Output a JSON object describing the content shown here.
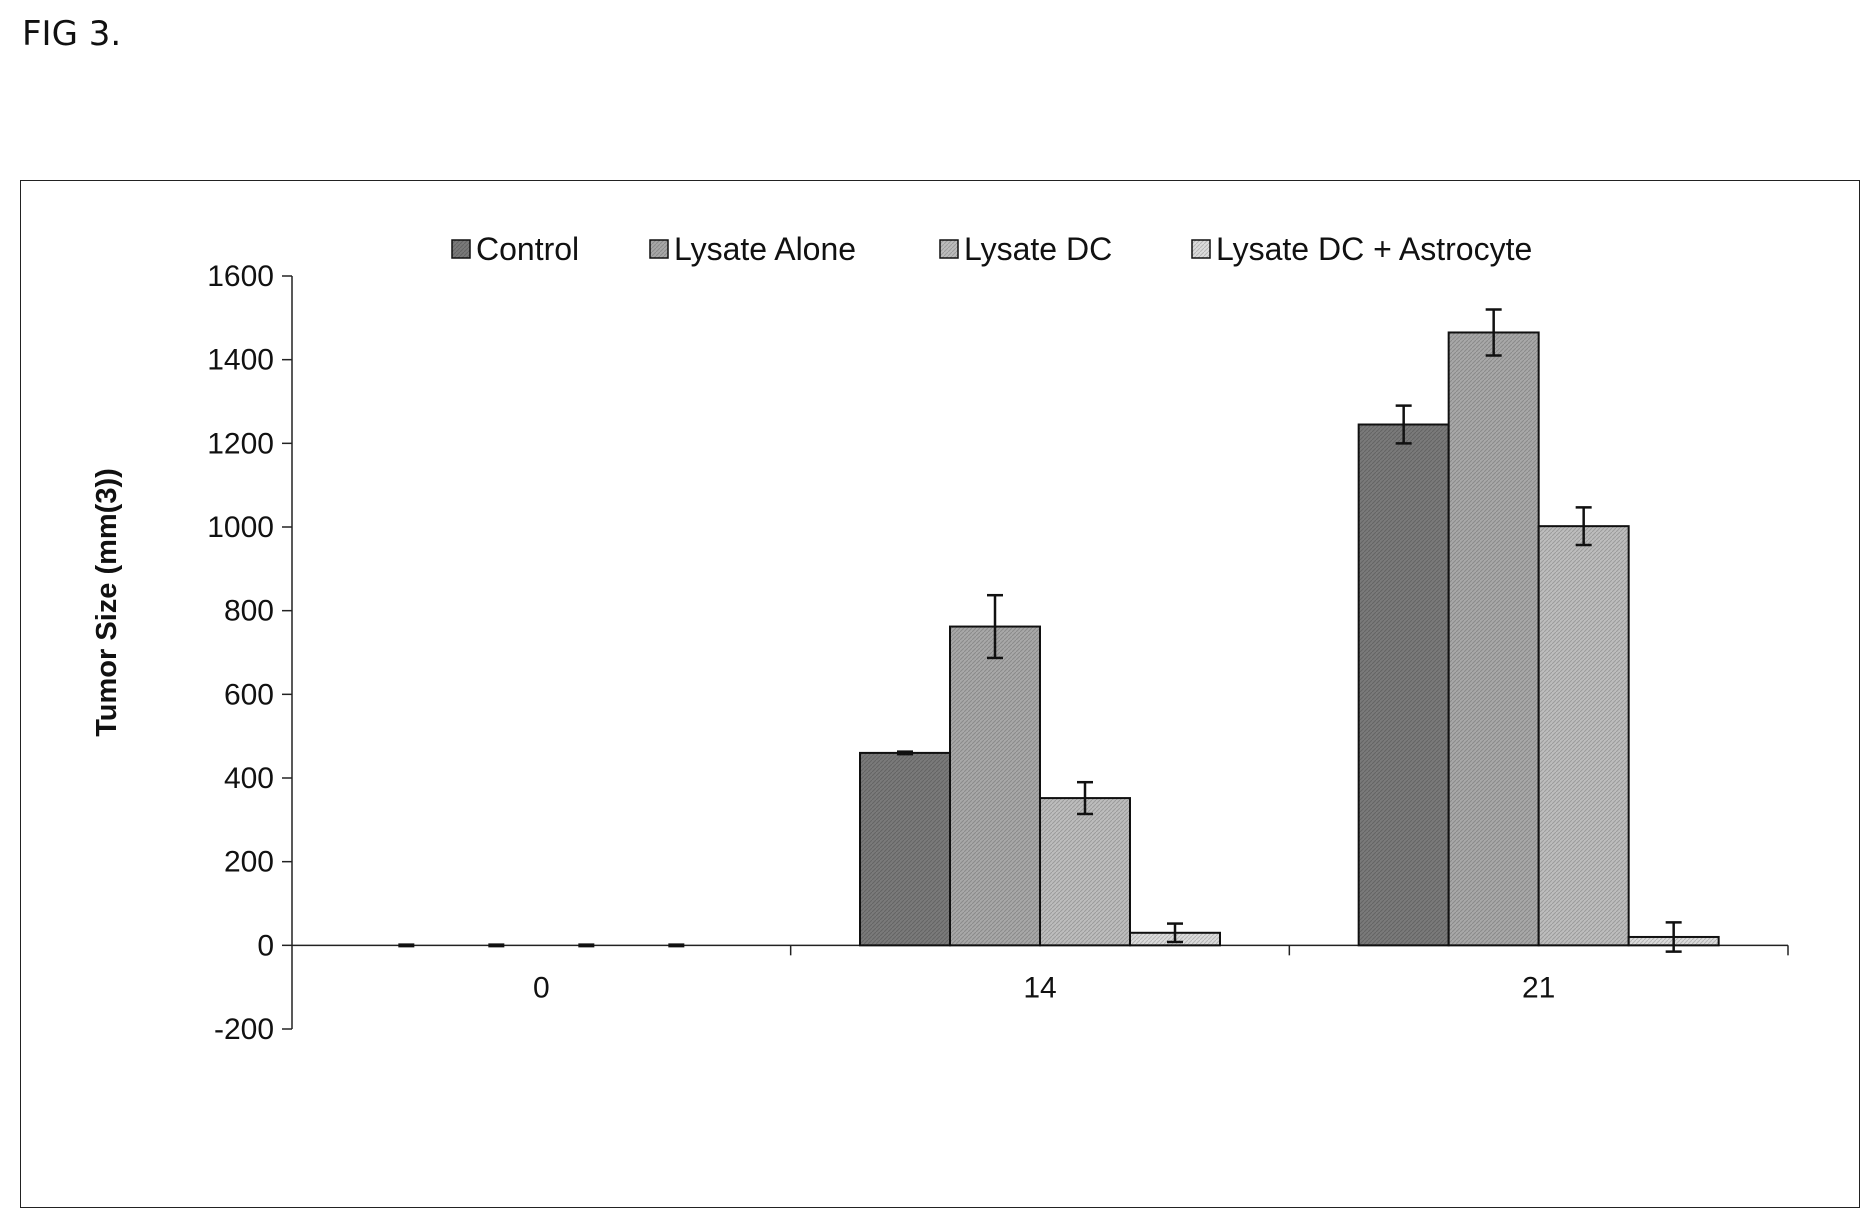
{
  "figure_label": "FIG 3.",
  "chart_data": {
    "type": "bar",
    "categories": [
      "0",
      "14",
      "21"
    ],
    "series": [
      {
        "name": "Control",
        "values": [
          0,
          460,
          1245
        ],
        "errors": [
          0,
          3,
          45
        ],
        "color": "#7a7a7a"
      },
      {
        "name": "Lysate Alone",
        "values": [
          0,
          762,
          1465
        ],
        "errors": [
          0,
          75,
          55
        ],
        "color": "#a8a8a8"
      },
      {
        "name": "Lysate DC",
        "values": [
          0,
          352,
          1002
        ],
        "errors": [
          0,
          38,
          45
        ],
        "color": "#bdbdbd"
      },
      {
        "name": "Lysate DC + Astrocyte",
        "values": [
          0,
          30,
          20
        ],
        "errors": [
          0,
          22,
          35
        ],
        "color": "#dcdcdc"
      }
    ],
    "title": "",
    "xlabel": "",
    "ylabel": "Tumor Size (mm(3))",
    "ylim": [
      -200,
      1600
    ],
    "yticks": [
      -200,
      0,
      200,
      400,
      600,
      800,
      1000,
      1200,
      1400,
      1600
    ],
    "grid": false,
    "legend_position": "top"
  }
}
